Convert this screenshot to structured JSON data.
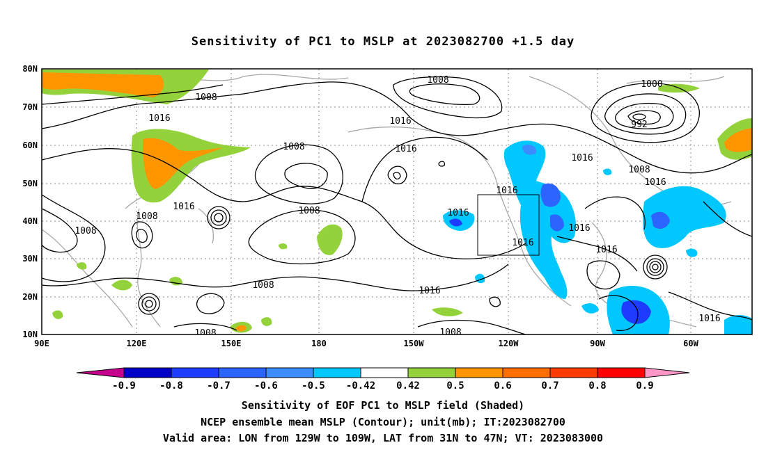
{
  "title": "Sensitivity of PC1 to MSLP at 2023082700 +1.5 day",
  "lat_labels": [
    "80N",
    "70N",
    "60N",
    "50N",
    "40N",
    "30N",
    "20N",
    "10N"
  ],
  "lon_labels": [
    "90E",
    "120E",
    "150E",
    "180",
    "150W",
    "120W",
    "90W",
    "60W"
  ],
  "contour_labels": [
    "1008",
    "1008",
    "1016",
    "1008",
    "1016",
    "1016",
    "1000",
    "992",
    "1016",
    "1008",
    "1016",
    "1016",
    "1016",
    "1008",
    "1016",
    "1008",
    "1016",
    "1008",
    "1016",
    "1016",
    "1008",
    "1016",
    "1008"
  ],
  "colorbar": {
    "ticks": [
      "-0.9",
      "-0.8",
      "-0.7",
      "-0.6",
      "-0.5",
      "-0.42",
      "0.42",
      "0.5",
      "0.6",
      "0.7",
      "0.8",
      "0.9"
    ],
    "colors": [
      "#c6008c",
      "#0000c8",
      "#1e3cff",
      "#2c64ff",
      "#3c8cff",
      "#00c8ff",
      "#ffffff",
      "#94d23c",
      "#ff9600",
      "#ff6e00",
      "#ff3c00",
      "#ff0000",
      "#ff96c8"
    ]
  },
  "captions": [
    "Sensitivity of EOF PC1 to MSLP field (Shaded)",
    "NCEP ensemble mean MSLP (Contour); unit(mb); IT:2023082700",
    "Valid area: LON from 129W to 109W, LAT from 31N to 47N; VT: 2023083000"
  ]
}
